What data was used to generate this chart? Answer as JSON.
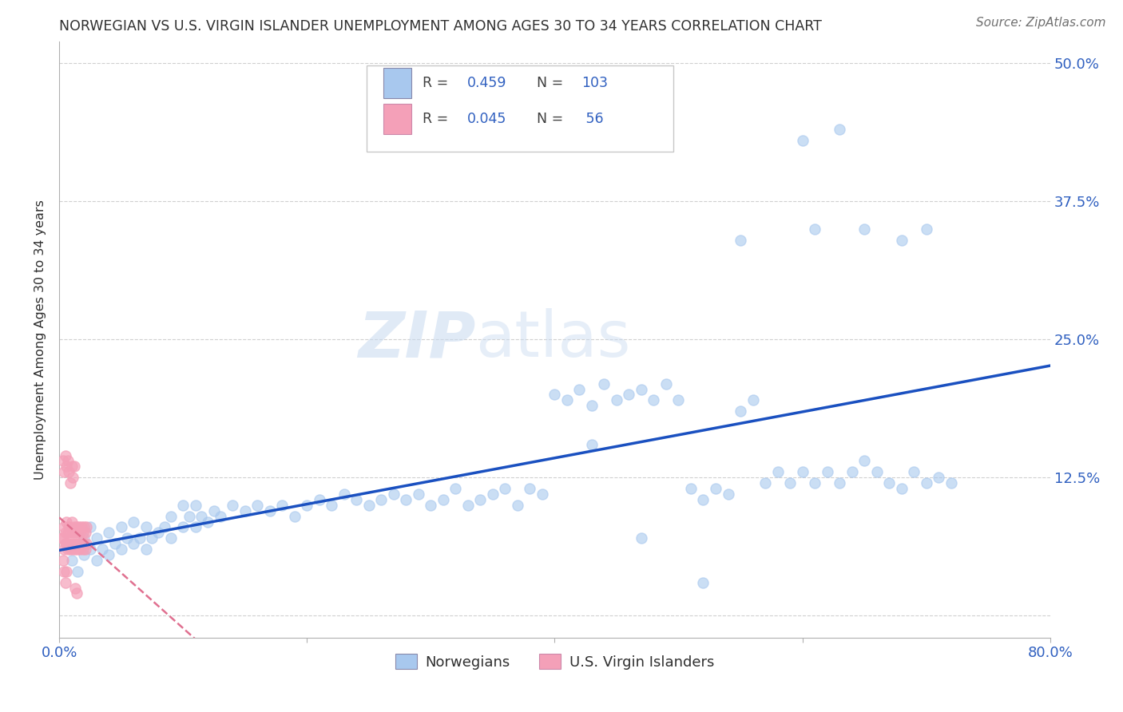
{
  "title": "NORWEGIAN VS U.S. VIRGIN ISLANDER UNEMPLOYMENT AMONG AGES 30 TO 34 YEARS CORRELATION CHART",
  "source": "Source: ZipAtlas.com",
  "ylabel": "Unemployment Among Ages 30 to 34 years",
  "xlim": [
    0.0,
    0.8
  ],
  "ylim": [
    -0.02,
    0.52
  ],
  "ytick_positions": [
    0.0,
    0.125,
    0.25,
    0.375,
    0.5
  ],
  "ytick_labels": [
    "",
    "12.5%",
    "25.0%",
    "37.5%",
    "50.0%"
  ],
  "norwegian_R": 0.459,
  "norwegian_N": 103,
  "virgin_R": 0.045,
  "virgin_N": 56,
  "blue_scatter_color": "#a8c8ee",
  "pink_scatter_color": "#f4a0b8",
  "blue_line_color": "#1a50c0",
  "pink_line_color": "#e07090",
  "title_color": "#303030",
  "tick_label_color": "#3060c0",
  "watermark_zip": "ZIP",
  "watermark_atlas": "atlas",
  "background_color": "#ffffff",
  "grid_color": "#d0d0d0",
  "nor_x": [
    0.01,
    0.015,
    0.02,
    0.02,
    0.025,
    0.025,
    0.03,
    0.03,
    0.035,
    0.04,
    0.04,
    0.045,
    0.05,
    0.05,
    0.055,
    0.06,
    0.06,
    0.065,
    0.07,
    0.07,
    0.075,
    0.08,
    0.085,
    0.09,
    0.09,
    0.1,
    0.1,
    0.105,
    0.11,
    0.11,
    0.115,
    0.12,
    0.125,
    0.13,
    0.14,
    0.15,
    0.16,
    0.17,
    0.18,
    0.19,
    0.2,
    0.21,
    0.22,
    0.23,
    0.24,
    0.25,
    0.26,
    0.27,
    0.28,
    0.29,
    0.3,
    0.31,
    0.32,
    0.33,
    0.34,
    0.35,
    0.36,
    0.37,
    0.38,
    0.39,
    0.4,
    0.41,
    0.42,
    0.43,
    0.44,
    0.45,
    0.46,
    0.47,
    0.48,
    0.49,
    0.5,
    0.51,
    0.52,
    0.53,
    0.54,
    0.55,
    0.56,
    0.57,
    0.58,
    0.59,
    0.6,
    0.61,
    0.62,
    0.63,
    0.64,
    0.65,
    0.66,
    0.67,
    0.68,
    0.69,
    0.7,
    0.71,
    0.72,
    0.55,
    0.6,
    0.61,
    0.63,
    0.65,
    0.68,
    0.7,
    0.43,
    0.47,
    0.52
  ],
  "nor_y": [
    0.05,
    0.04,
    0.055,
    0.07,
    0.06,
    0.08,
    0.05,
    0.07,
    0.06,
    0.055,
    0.075,
    0.065,
    0.06,
    0.08,
    0.07,
    0.065,
    0.085,
    0.07,
    0.06,
    0.08,
    0.07,
    0.075,
    0.08,
    0.07,
    0.09,
    0.08,
    0.1,
    0.09,
    0.08,
    0.1,
    0.09,
    0.085,
    0.095,
    0.09,
    0.1,
    0.095,
    0.1,
    0.095,
    0.1,
    0.09,
    0.1,
    0.105,
    0.1,
    0.11,
    0.105,
    0.1,
    0.105,
    0.11,
    0.105,
    0.11,
    0.1,
    0.105,
    0.115,
    0.1,
    0.105,
    0.11,
    0.115,
    0.1,
    0.115,
    0.11,
    0.2,
    0.195,
    0.205,
    0.19,
    0.21,
    0.195,
    0.2,
    0.205,
    0.195,
    0.21,
    0.195,
    0.115,
    0.105,
    0.115,
    0.11,
    0.185,
    0.195,
    0.12,
    0.13,
    0.12,
    0.13,
    0.12,
    0.13,
    0.12,
    0.13,
    0.14,
    0.13,
    0.12,
    0.115,
    0.13,
    0.12,
    0.125,
    0.12,
    0.34,
    0.43,
    0.35,
    0.44,
    0.35,
    0.34,
    0.35,
    0.155,
    0.07,
    0.03
  ],
  "vir_x": [
    0.002,
    0.003,
    0.004,
    0.004,
    0.005,
    0.005,
    0.006,
    0.006,
    0.007,
    0.007,
    0.008,
    0.008,
    0.009,
    0.009,
    0.01,
    0.01,
    0.011,
    0.011,
    0.012,
    0.012,
    0.013,
    0.013,
    0.014,
    0.014,
    0.015,
    0.015,
    0.016,
    0.016,
    0.017,
    0.017,
    0.018,
    0.018,
    0.019,
    0.019,
    0.02,
    0.02,
    0.021,
    0.021,
    0.022,
    0.022,
    0.003,
    0.004,
    0.005,
    0.006,
    0.007,
    0.008,
    0.009,
    0.01,
    0.011,
    0.012,
    0.013,
    0.014,
    0.003,
    0.004,
    0.005,
    0.006
  ],
  "vir_y": [
    0.07,
    0.07,
    0.08,
    0.06,
    0.075,
    0.065,
    0.085,
    0.065,
    0.075,
    0.06,
    0.08,
    0.065,
    0.075,
    0.06,
    0.085,
    0.065,
    0.075,
    0.06,
    0.08,
    0.065,
    0.075,
    0.06,
    0.08,
    0.065,
    0.075,
    0.06,
    0.08,
    0.065,
    0.075,
    0.06,
    0.08,
    0.065,
    0.075,
    0.06,
    0.08,
    0.065,
    0.075,
    0.06,
    0.08,
    0.065,
    0.14,
    0.13,
    0.145,
    0.135,
    0.14,
    0.13,
    0.12,
    0.135,
    0.125,
    0.135,
    0.025,
    0.02,
    0.05,
    0.04,
    0.03,
    0.04
  ],
  "legend_nor_label": "Norwegians",
  "legend_vir_label": "U.S. Virgin Islanders"
}
